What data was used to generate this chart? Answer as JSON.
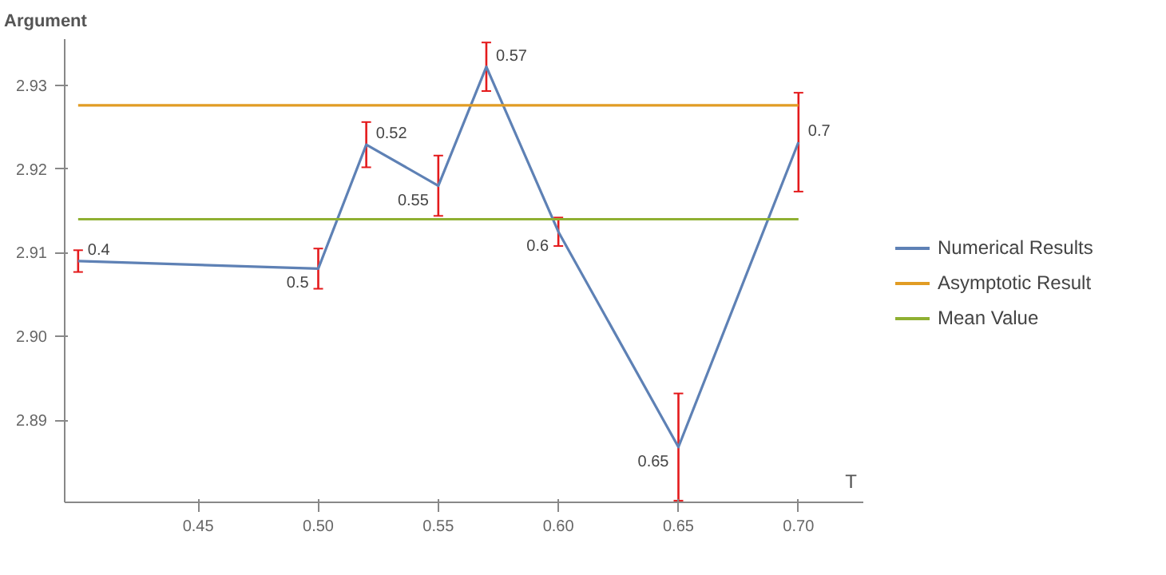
{
  "chart_data": {
    "type": "line",
    "xlabel": "T",
    "ylabel": "Argument",
    "series": [
      {
        "name": "Numerical Results",
        "color": "#5e81b5",
        "x": [
          0.4,
          0.5,
          0.52,
          0.55,
          0.57,
          0.6,
          0.65,
          0.7
        ],
        "values": [
          2.909,
          2.9081,
          2.9229,
          2.918,
          2.9322,
          2.9125,
          2.8868,
          2.9232
        ],
        "errors": [
          0.0013,
          0.0024,
          0.0027,
          0.0036,
          0.0029,
          0.0017,
          0.0064,
          0.0059
        ]
      },
      {
        "name": "Asymptotic Result",
        "color": "#e19c24",
        "x": [
          0.4,
          0.7
        ],
        "values": [
          2.9276,
          2.9276
        ]
      },
      {
        "name": "Mean Value",
        "color": "#8fb032",
        "x": [
          0.4,
          0.7
        ],
        "values": [
          2.914,
          2.914
        ]
      }
    ],
    "annotations": [
      {
        "text": "0.4",
        "x": 0.4,
        "y": 2.909
      },
      {
        "text": "0.5",
        "x": 0.5,
        "y": 2.9081
      },
      {
        "text": "0.52",
        "x": 0.52,
        "y": 2.9229
      },
      {
        "text": "0.55",
        "x": 0.55,
        "y": 2.918
      },
      {
        "text": "0.57",
        "x": 0.57,
        "y": 2.9322
      },
      {
        "text": "0.6",
        "x": 0.6,
        "y": 2.9125
      },
      {
        "text": "0.65",
        "x": 0.65,
        "y": 2.8868
      },
      {
        "text": "0.7",
        "x": 0.7,
        "y": 2.9232
      }
    ],
    "xlim": [
      0.3944,
      0.727
    ],
    "ylim": [
      2.8802,
      2.9355
    ],
    "xticks": [
      0.45,
      {
        "value": 0.5,
        "label": "0.50"
      },
      0.55,
      {
        "value": 0.6,
        "label": "0.60"
      },
      0.65,
      {
        "value": 0.7,
        "label": "0.70"
      }
    ],
    "yticks": [
      2.89,
      {
        "value": 2.9,
        "label": "2.90"
      },
      2.91,
      2.92,
      2.93
    ],
    "grid": false,
    "legend": "right",
    "marker": "none",
    "line_style": "solid"
  }
}
